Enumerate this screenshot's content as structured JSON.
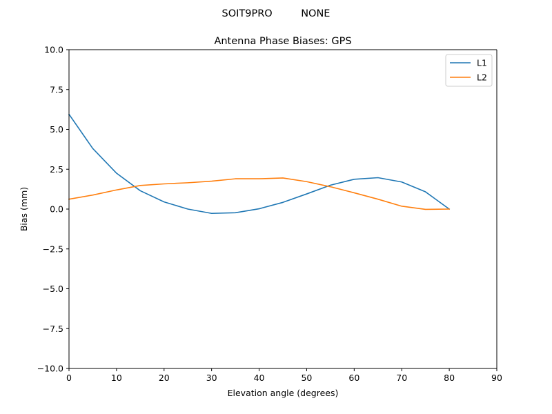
{
  "figure": {
    "suptitle": "SOIT9PRO         NONE"
  },
  "chart_data": {
    "type": "line",
    "title": "Antenna Phase Biases: GPS",
    "xlabel": "Elevation angle (degrees)",
    "ylabel": "Bias (mm)",
    "xlim": [
      0,
      90
    ],
    "ylim": [
      -10,
      10
    ],
    "xticks": [
      0,
      10,
      20,
      30,
      40,
      50,
      60,
      70,
      80,
      90
    ],
    "yticks": [
      -10.0,
      -7.5,
      -5.0,
      -2.5,
      0.0,
      2.5,
      5.0,
      7.5,
      10.0
    ],
    "ytick_labels": [
      "−10.0",
      "−7.5",
      "−5.0",
      "−2.5",
      "0.0",
      "2.5",
      "5.0",
      "7.5",
      "10.0"
    ],
    "grid": false,
    "legend": {
      "placement": "top-right"
    },
    "x": [
      0,
      5,
      10,
      15,
      20,
      25,
      30,
      35,
      40,
      45,
      50,
      55,
      60,
      65,
      70,
      75,
      80
    ],
    "series": [
      {
        "name": "L1",
        "color": "#1f77b4",
        "values": [
          5.95,
          3.8,
          2.25,
          1.15,
          0.45,
          0.0,
          -0.27,
          -0.23,
          0.02,
          0.42,
          0.95,
          1.5,
          1.87,
          1.97,
          1.7,
          1.08,
          0.0
        ]
      },
      {
        "name": "L2",
        "color": "#ff7f0e",
        "values": [
          0.62,
          0.88,
          1.2,
          1.48,
          1.58,
          1.65,
          1.75,
          1.9,
          1.9,
          1.95,
          1.72,
          1.4,
          1.02,
          0.62,
          0.18,
          -0.02,
          0.0
        ]
      }
    ]
  }
}
